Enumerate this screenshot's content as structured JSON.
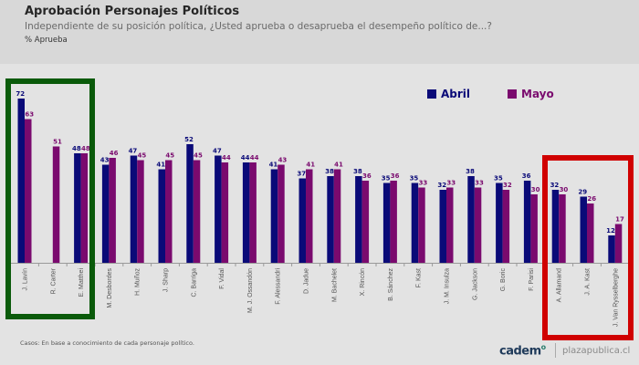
{
  "header": {
    "title": "Aprobación Personajes Políticos",
    "subtitle": "Independiente de su posición política, ¿Usted aprueba o desaprueba el desempeño político de...?",
    "unit": "% Aprueba"
  },
  "legend": [
    {
      "label": "Abril",
      "color": "#0a0a78"
    },
    {
      "label": "Mayo",
      "color": "#7a0a6e"
    }
  ],
  "highlights": [
    {
      "name": "green-highlight",
      "color": "#0a5a0a",
      "categories": [
        "J. Lavín",
        "R. Carter",
        "E. Matthei"
      ]
    },
    {
      "name": "red-highlight",
      "color": "#d00000",
      "categories": [
        "A. Allamand",
        "J. A. Kast",
        "J. Van Rysselberghe"
      ]
    }
  ],
  "footer": {
    "note": "Casos: En base a conocimiento de cada personaje político.",
    "logo": "cadem",
    "site": "plazapublica.cl"
  },
  "chart_data": {
    "type": "bar",
    "title": "Aprobación Personajes Políticos",
    "xlabel": "",
    "ylabel": "% Aprueba",
    "ylim": [
      0,
      80
    ],
    "grid": false,
    "legend_position": "top-right",
    "categories": [
      "J. Lavín",
      "R. Carter",
      "E. Matthei",
      "M. Desbordes",
      "H. Muñoz",
      "J. Sharp",
      "C. Barriga",
      "F. Vidal",
      "M. J. Ossandón",
      "F. Alessandri",
      "D. Jadue",
      "M. Bachelet",
      "X. Rincón",
      "B. Sánchez",
      "F. Kast",
      "J. M. Insulza",
      "G. Jackson",
      "G. Boric",
      "F. Parisi",
      "A. Allamand",
      "J. A. Kast",
      "J. Van Rysselberghe"
    ],
    "series": [
      {
        "name": "Abril",
        "color": "#0a0a78",
        "values": [
          72,
          null,
          48,
          43,
          47,
          41,
          52,
          47,
          44,
          41,
          37,
          38,
          38,
          35,
          35,
          32,
          38,
          35,
          36,
          32,
          29,
          12
        ]
      },
      {
        "name": "Mayo",
        "color": "#7a0a6e",
        "values": [
          63,
          51,
          48,
          46,
          45,
          45,
          45,
          44,
          44,
          43,
          41,
          41,
          36,
          36,
          33,
          33,
          33,
          32,
          30,
          30,
          26,
          17
        ]
      }
    ]
  }
}
